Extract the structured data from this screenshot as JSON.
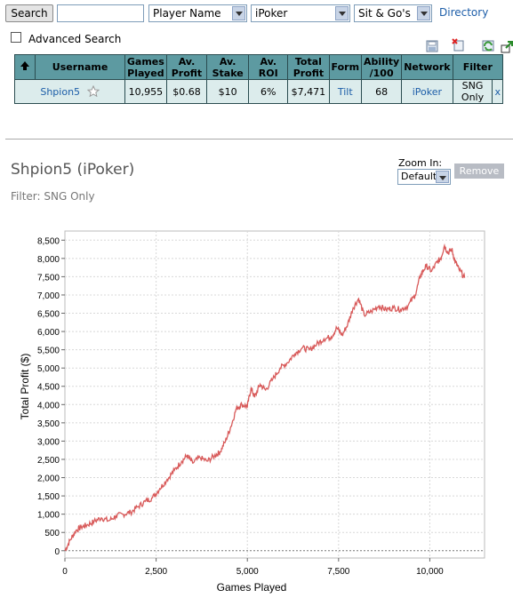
{
  "toolbar": {
    "search_label": "Search",
    "search_value": "",
    "field_select": "Player Name",
    "network_select": "iPoker",
    "game_select": "Sit & Go's",
    "directory_link": "Directory"
  },
  "advanced": {
    "label": "Advanced Search",
    "checked": false
  },
  "table": {
    "headers": [
      "Username",
      "Games Played",
      "Av. Profit",
      "Av. Stake",
      "Av. ROI",
      "Total Profit",
      "Form",
      "Ability /100",
      "Network",
      "Filter"
    ],
    "row": {
      "username": "Shpion5",
      "games_played": "10,955",
      "av_profit": "$0.68",
      "av_stake": "$10",
      "av_roi": "6%",
      "total_profit": "$7,471",
      "form": "Tilt",
      "ability": "68",
      "network": "iPoker",
      "filter": "SNG Only",
      "remove": "x"
    }
  },
  "player": {
    "title": "Shpion5 (iPoker)",
    "filter_text": "Filter: SNG Only",
    "zoom_label": "Zoom In:",
    "zoom_value": "Default",
    "remove_label": "Remove"
  },
  "chart_data": {
    "type": "line",
    "title": "",
    "xlabel": "Games Played",
    "ylabel": "Total Profit ($)",
    "xlim": [
      0,
      11500
    ],
    "ylim": [
      -200,
      8750
    ],
    "x_ticks": [
      0,
      2500,
      5000,
      7500,
      10000
    ],
    "x_tick_labels": [
      "0",
      "2,500",
      "5,000",
      "7,500",
      "10,000"
    ],
    "y_ticks": [
      0,
      500,
      1000,
      1500,
      2000,
      2500,
      3000,
      3500,
      4000,
      4500,
      5000,
      5500,
      6000,
      6500,
      7000,
      7500,
      8000,
      8500
    ],
    "y_tick_labels": [
      "0",
      "500",
      "1,000",
      "1,500",
      "2,000",
      "2,500",
      "3,000",
      "3,500",
      "4,000",
      "4,500",
      "5,000",
      "5,500",
      "6,000",
      "6,500",
      "7,000",
      "7,500",
      "8,000",
      "8,500"
    ],
    "grid": true,
    "color": "#d85a5a",
    "series": [
      {
        "x": [
          0,
          150,
          300,
          450,
          600,
          800,
          1000,
          1200,
          1400,
          1600,
          1800,
          2000,
          2200,
          2400,
          2600,
          2800,
          3000,
          3200,
          3350,
          3500,
          3700,
          3900,
          4100,
          4250,
          4400,
          4550,
          4700,
          4850,
          5000,
          5100,
          5200,
          5350,
          5500,
          5700,
          5900,
          6100,
          6300,
          6500,
          6700,
          6900,
          7100,
          7300,
          7450,
          7600,
          7750,
          7900,
          8050,
          8200,
          8400,
          8600,
          8800,
          9000,
          9200,
          9400,
          9600,
          9750,
          9900,
          10050,
          10200,
          10300,
          10400,
          10500,
          10600,
          10700,
          10800,
          10955
        ],
        "y": [
          0,
          300,
          550,
          650,
          700,
          800,
          900,
          820,
          950,
          1000,
          1050,
          1200,
          1350,
          1450,
          1700,
          1950,
          2200,
          2450,
          2600,
          2400,
          2550,
          2450,
          2600,
          2700,
          3000,
          3400,
          3900,
          4000,
          3950,
          4450,
          4200,
          4550,
          4400,
          4700,
          5000,
          5150,
          5400,
          5550,
          5500,
          5650,
          5800,
          5850,
          6100,
          5900,
          6200,
          6650,
          6900,
          6450,
          6550,
          6700,
          6600,
          6650,
          6600,
          6700,
          7000,
          7550,
          7800,
          7650,
          7900,
          8000,
          8350,
          8150,
          8250,
          7900,
          7700,
          7471
        ]
      }
    ]
  }
}
